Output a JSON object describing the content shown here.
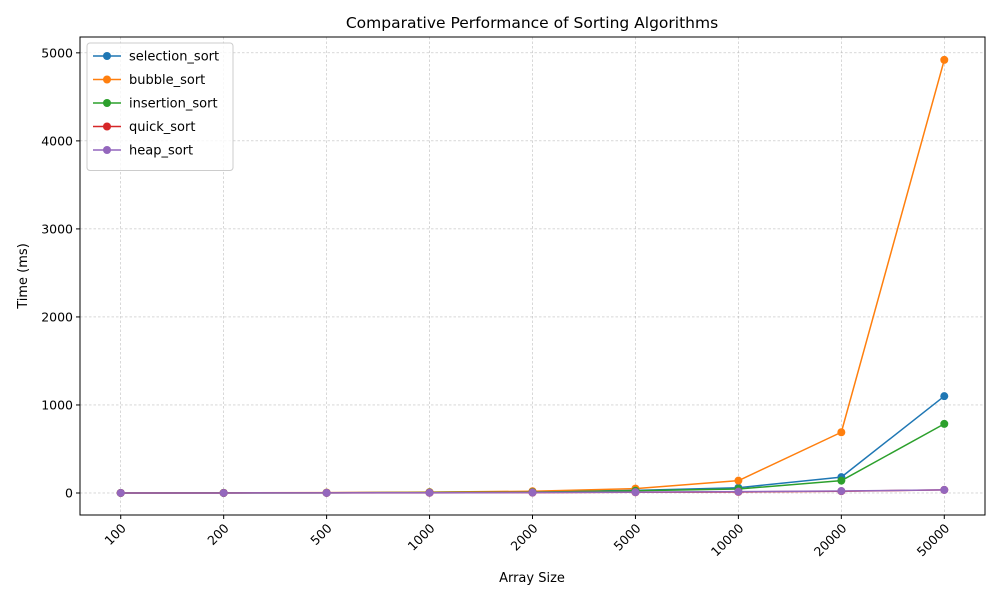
{
  "chart_data": {
    "type": "line",
    "title": "Comparative Performance of Sorting Algorithms",
    "xlabel": "Array Size",
    "ylabel": "Time (ms)",
    "x": [
      "100",
      "200",
      "500",
      "1000",
      "2000",
      "5000",
      "10000",
      "20000",
      "50000"
    ],
    "ylim": [
      -250,
      5180
    ],
    "yticks": [
      0,
      1000,
      2000,
      3000,
      4000,
      5000
    ],
    "grid": true,
    "legend_position": "top-left",
    "series": [
      {
        "name": "selection_sort",
        "color": "#1f77b4",
        "values": [
          0.5,
          1,
          3,
          8,
          15,
          30,
          60,
          180,
          1100
        ]
      },
      {
        "name": "bubble_sort",
        "color": "#ff7f0e",
        "values": [
          0.5,
          1.5,
          4,
          10,
          20,
          50,
          140,
          690,
          4920
        ]
      },
      {
        "name": "insertion_sort",
        "color": "#2ca02c",
        "values": [
          0.3,
          1,
          2,
          5,
          10,
          25,
          45,
          140,
          785
        ]
      },
      {
        "name": "quick_sort",
        "color": "#d62728",
        "values": [
          0.2,
          0.5,
          1,
          2,
          4,
          8,
          12,
          20,
          35
        ]
      },
      {
        "name": "heap_sort",
        "color": "#9467bd",
        "values": [
          0.3,
          0.6,
          1.5,
          3,
          5,
          10,
          15,
          22,
          35
        ]
      }
    ]
  }
}
